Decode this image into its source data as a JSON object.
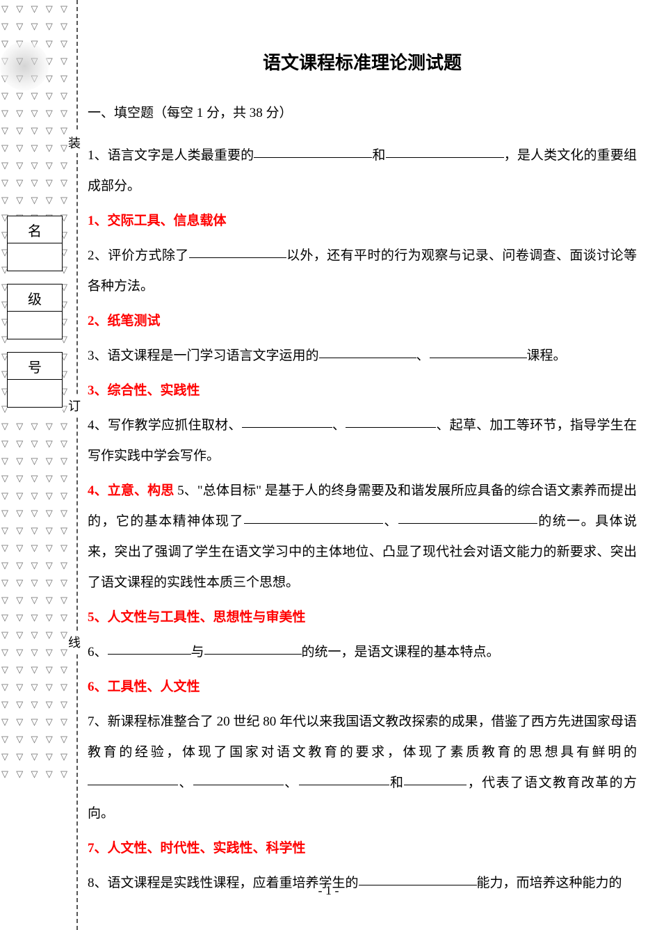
{
  "colors": {
    "answer": "#ff0000",
    "text": "#000000",
    "triangle": "#6b6b6b",
    "bg": "#ffffff"
  },
  "title": "语文课程标准理论测试题",
  "section_heading": "一、填空题（每空 1 分，共 38 分）",
  "side_labels": {
    "name": "名",
    "class": "级",
    "number": "号"
  },
  "bind_marks": {
    "top": "装",
    "mid": "订",
    "bottom": "线"
  },
  "q1": {
    "pre": "1、语言文字是人类最重要的",
    "mid": "和",
    "post": "，是人类文化的重要组成部分。"
  },
  "a1": "1、交际工具、信息载体",
  "q2": {
    "pre": "2、评价方式除了",
    "post": "以外，还有平时的行为观察与记录、问卷调查、面谈讨论等各种方法。"
  },
  "a2": "2、纸笔测试",
  "q3": {
    "pre": "3、语文课程是一门学习语言文字运用的",
    "mid": "、",
    "post": "课程。"
  },
  "a3": "3、综合性、实践性",
  "q4": {
    "pre": "4、写作教学应抓住取材、",
    "mid": "、",
    "post": "、起草、加工等环节，指导学生在写作实践中学会写作。"
  },
  "a4_q5": {
    "ans": "4、立意、构思",
    "q5a": " 5、\"总体目标\" 是基于人的终身需要及和谐发展所应具备的综合语文素养而提出的，它的基本精神体现了",
    "mid": "、",
    "q5b": "的统一。具体说来，突出了强调了学生在语文学习中的主体地位、凸显了现代社会对语文能力的新要求、突出了语文课程的实践性本质三个思想。"
  },
  "a5": "5、人文性与工具性、思想性与审美性",
  "q6": {
    "pre": "6、",
    "mid": "与",
    "post": "的统一，是语文课程的基本特点。"
  },
  "a6": "6、工具性、人文性",
  "q7": {
    "pre": "7、新课程标准整合了 20 世纪 80 年代以来我国语文教改探索的成果，借鉴了西方先进国家母语教育的经验，体现了国家对语文教育的要求，体现了素质教育的思想具有鲜明的",
    "sep1": "、",
    "sep2": "、",
    "sep3": "和",
    "post": "，代表了语文教育改革的方向。"
  },
  "a7": "7、人文性、时代性、实践性、科学性",
  "q8": {
    "pre": "8、语文课程是实践性课程，应着重培养学生的",
    "post": "能力，而培养这种能力的"
  },
  "page_number": "- 1 -",
  "blank_widths": {
    "w_long": 170,
    "w_med": 140,
    "w_short": 110,
    "w_tiny": 90
  }
}
